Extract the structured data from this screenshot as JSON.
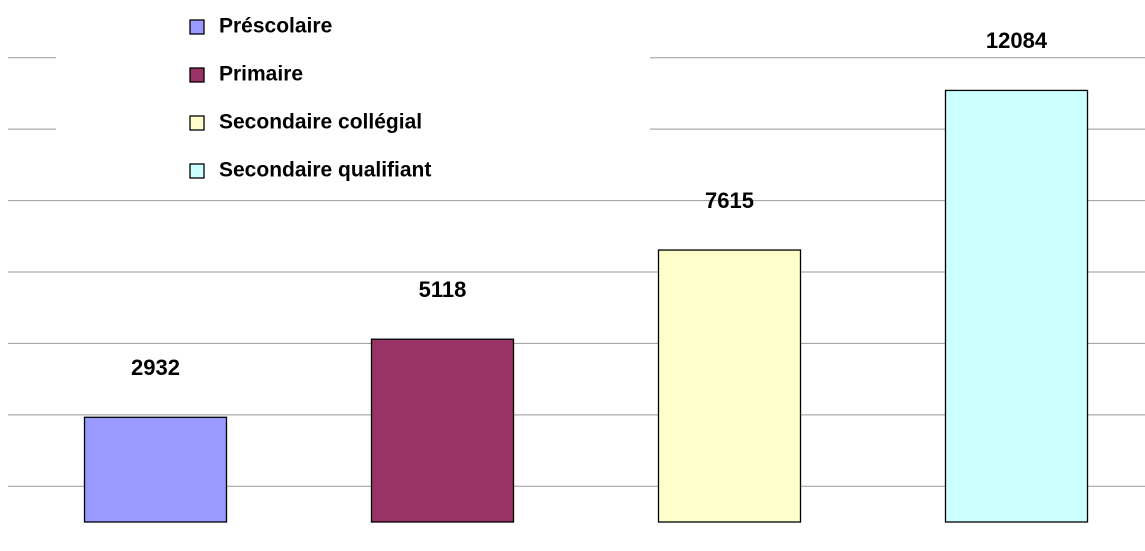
{
  "chart_data": {
    "type": "bar",
    "series": [
      {
        "name": "Préscolaire",
        "color": "#9999ff",
        "values": [
          2932
        ]
      },
      {
        "name": "Primaire",
        "color": "#993366",
        "values": [
          5118
        ]
      },
      {
        "name": "Secondaire collégial",
        "color": "#ffffcc",
        "values": [
          7615
        ]
      },
      {
        "name": "Secondaire qualifiant",
        "color": "#ccffff",
        "values": [
          12084
        ]
      }
    ],
    "ylim": [
      0,
      14000
    ],
    "yticks": [
      1000,
      3000,
      5000,
      7000,
      9000,
      11000,
      13000
    ],
    "grid": true,
    "legend": "top-left"
  }
}
